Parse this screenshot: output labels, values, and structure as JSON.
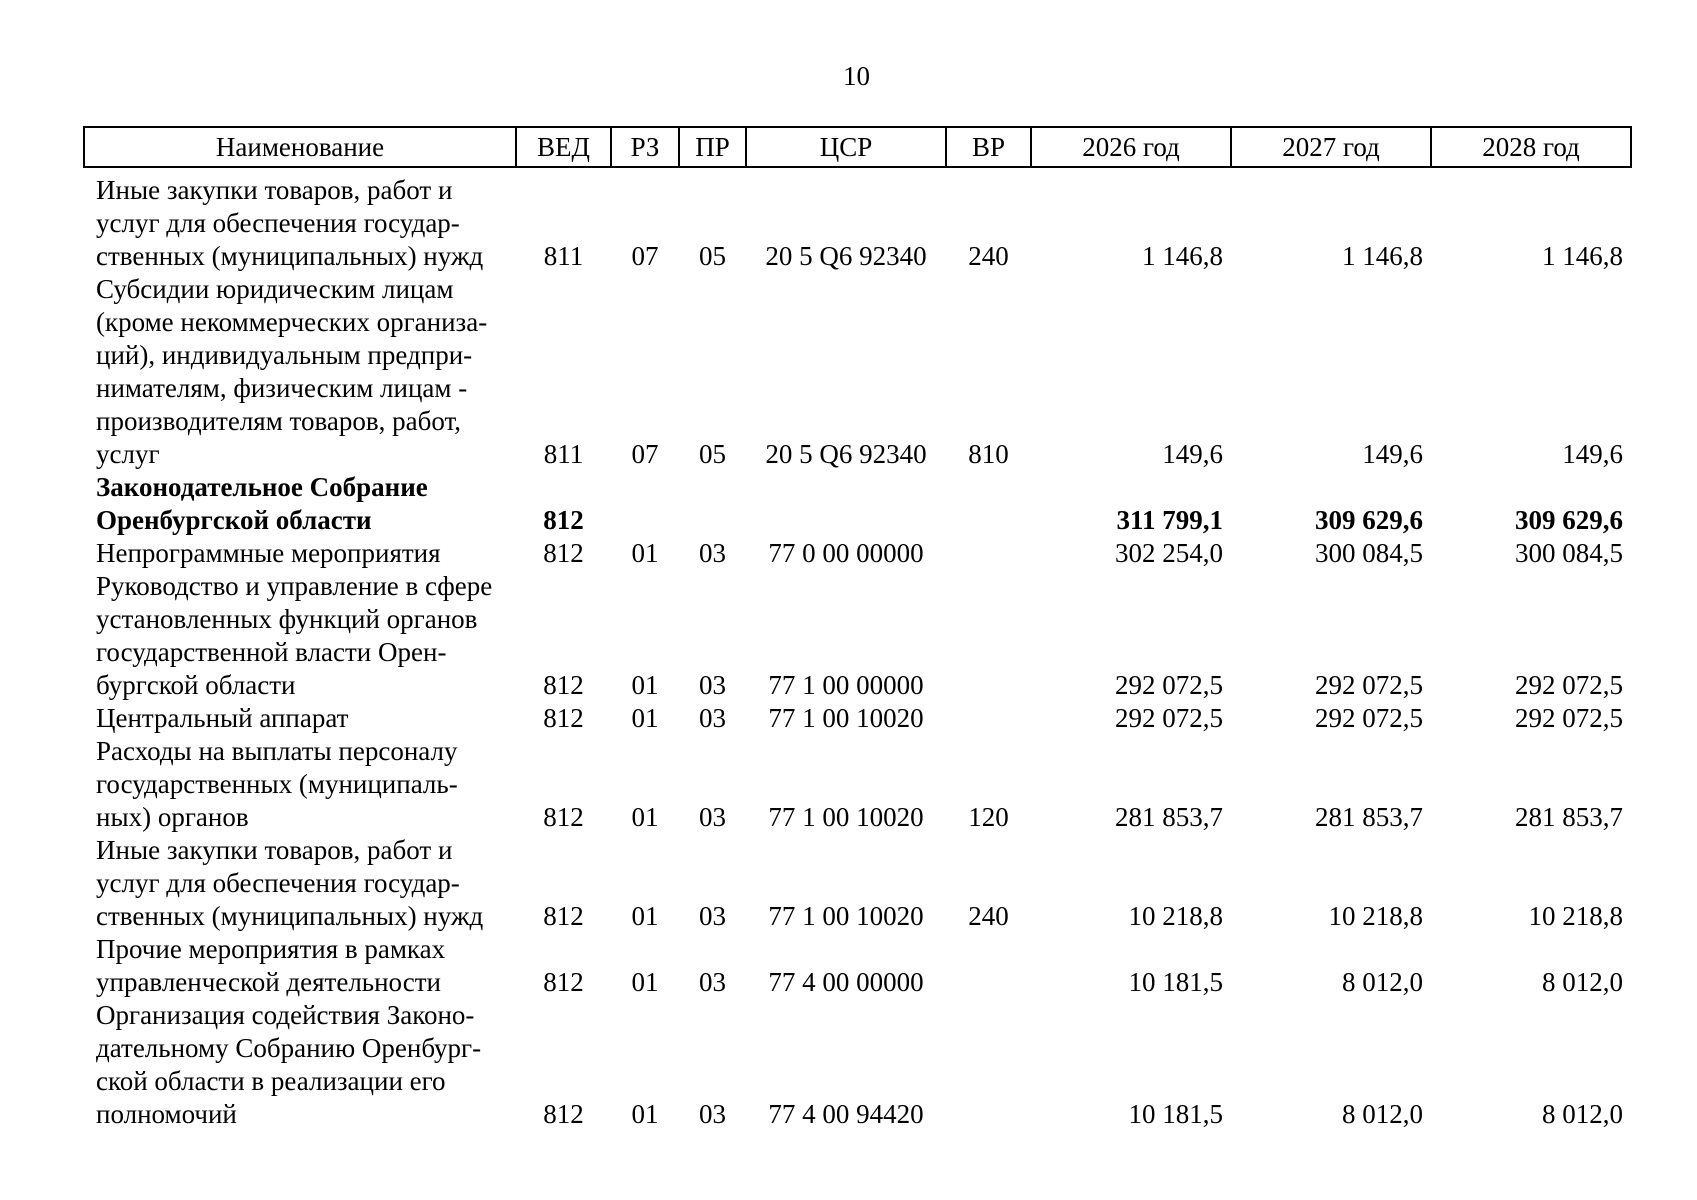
{
  "page": {
    "number": "10"
  },
  "table": {
    "headers": [
      "Наименование",
      "ВЕД",
      "РЗ",
      "ПР",
      "ЦСР",
      "ВР",
      "2026 год",
      "2027 год",
      "2028 год"
    ],
    "rows": [
      {
        "name": "Иные закупки товаров, работ и\nуслуг для обеспечения государ-\nственных (муниципальных) нужд",
        "ved": "811",
        "rz": "07",
        "pr": "05",
        "csr": "20 5 Q6 92340",
        "vr": "240",
        "y2026": "1 146,8",
        "y2027": "1 146,8",
        "y2028": "1 146,8",
        "bold": false
      },
      {
        "name": "Субсидии юридическим лицам\n(кроме некоммерческих организа-\nций), индивидуальным предпри-\nнимателям, физическим лицам -\nпроизводителям товаров, работ,\nуслуг",
        "ved": "811",
        "rz": "07",
        "pr": "05",
        "csr": "20 5 Q6 92340",
        "vr": "810",
        "y2026": "149,6",
        "y2027": "149,6",
        "y2028": "149,6",
        "bold": false
      },
      {
        "name": "Законодательное Собрание\nОренбургской области",
        "ved": "812",
        "rz": "",
        "pr": "",
        "csr": "",
        "vr": "",
        "y2026": "311 799,1",
        "y2027": "309 629,6",
        "y2028": "309 629,6",
        "bold": true
      },
      {
        "name": "Непрограммные мероприятия",
        "ved": "812",
        "rz": "01",
        "pr": "03",
        "csr": "77 0 00 00000",
        "vr": "",
        "y2026": "302 254,0",
        "y2027": "300 084,5",
        "y2028": "300 084,5",
        "bold": false
      },
      {
        "name": "Руководство и управление в сфере\nустановленных функций органов\nгосударственной власти Орен-\nбургской области",
        "ved": "812",
        "rz": "01",
        "pr": "03",
        "csr": "77 1 00 00000",
        "vr": "",
        "y2026": "292 072,5",
        "y2027": "292 072,5",
        "y2028": "292 072,5",
        "bold": false
      },
      {
        "name": "Центральный аппарат",
        "ved": "812",
        "rz": "01",
        "pr": "03",
        "csr": "77 1 00 10020",
        "vr": "",
        "y2026": "292 072,5",
        "y2027": "292 072,5",
        "y2028": "292 072,5",
        "bold": false
      },
      {
        "name": "Расходы на выплаты персоналу\nгосударственных (муниципаль-\nных) органов",
        "ved": "812",
        "rz": "01",
        "pr": "03",
        "csr": "77 1 00 10020",
        "vr": "120",
        "y2026": "281 853,7",
        "y2027": "281 853,7",
        "y2028": "281 853,7",
        "bold": false
      },
      {
        "name": "Иные закупки товаров, работ и\nуслуг для обеспечения государ-\nственных (муниципальных) нужд",
        "ved": "812",
        "rz": "01",
        "pr": "03",
        "csr": "77 1 00 10020",
        "vr": "240",
        "y2026": "10 218,8",
        "y2027": "10 218,8",
        "y2028": "10 218,8",
        "bold": false
      },
      {
        "name": "Прочие мероприятия в рамках\nуправленческой деятельности",
        "ved": "812",
        "rz": "01",
        "pr": "03",
        "csr": "77 4 00 00000",
        "vr": "",
        "y2026": "10 181,5",
        "y2027": "8 012,0",
        "y2028": "8 012,0",
        "bold": false
      },
      {
        "name": "Организация содействия Законо-\nдательному Собранию Оренбург-\nской области в реализации его\nполномочий",
        "ved": "812",
        "rz": "01",
        "pr": "03",
        "csr": "77 4 00 94420",
        "vr": "",
        "y2026": "10 181,5",
        "y2027": "8 012,0",
        "y2028": "8 012,0",
        "bold": false
      }
    ]
  }
}
